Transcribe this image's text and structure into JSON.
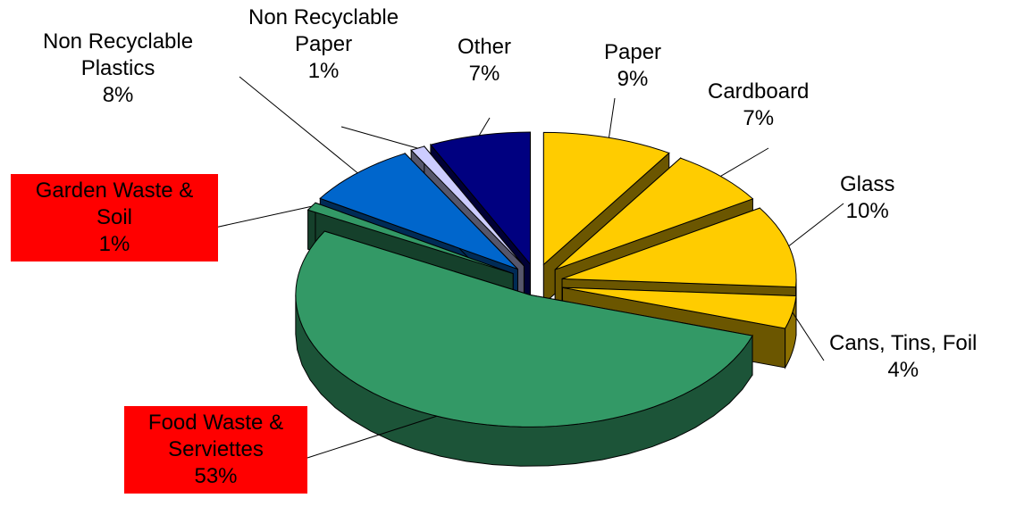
{
  "chart_data": {
    "type": "pie",
    "style": "3d-exploded",
    "slices": [
      {
        "id": "paper",
        "label": "Paper",
        "value": 9,
        "pct_text": "9%",
        "color": "#ffcc00",
        "label_highlight": false
      },
      {
        "id": "cardboard",
        "label": "Cardboard",
        "value": 7,
        "pct_text": "7%",
        "color": "#ffcc00",
        "label_highlight": false
      },
      {
        "id": "glass",
        "label": "Glass",
        "value": 10,
        "pct_text": "10%",
        "color": "#ffcc00",
        "label_highlight": false
      },
      {
        "id": "cans",
        "label": "Cans, Tins, Foil",
        "value": 4,
        "pct_text": "4%",
        "color": "#ffcc00",
        "label_highlight": false
      },
      {
        "id": "food",
        "label": "Food Waste & Serviettes",
        "value": 53,
        "pct_text": "53%",
        "color": "#339966",
        "label_highlight": true
      },
      {
        "id": "garden",
        "label": "Garden Waste & Soil",
        "value": 1,
        "pct_text": "1%",
        "color": "#339966",
        "label_highlight": true
      },
      {
        "id": "nrplastics",
        "label": "Non Recyclable Plastics",
        "value": 8,
        "pct_text": "8%",
        "color": "#0066cc",
        "label_highlight": false
      },
      {
        "id": "nrpaper",
        "label": "Non Recyclable Paper",
        "value": 1,
        "pct_text": "1%",
        "color": "#ccccff",
        "label_highlight": false
      },
      {
        "id": "other",
        "label": "Other",
        "value": 7,
        "pct_text": "7%",
        "color": "#000080",
        "label_highlight": false
      }
    ],
    "labels": {
      "paper": [
        "Paper",
        "9%"
      ],
      "cardboard": [
        "Cardboard",
        "7%"
      ],
      "glass": [
        "Glass",
        "10%"
      ],
      "cans": [
        "Cans, Tins, Foil",
        "4%"
      ],
      "food": [
        "Food Waste &",
        "Serviettes",
        "53%"
      ],
      "garden": [
        "Garden Waste &",
        "Soil",
        "1%"
      ],
      "nrplastics": [
        "Non Recyclable",
        "Plastics",
        "8%"
      ],
      "nrpaper": [
        "Non Recyclable",
        "Paper",
        "1%"
      ],
      "other": [
        "Other",
        "7%"
      ]
    },
    "label_highlight_color": "#ff0000"
  }
}
